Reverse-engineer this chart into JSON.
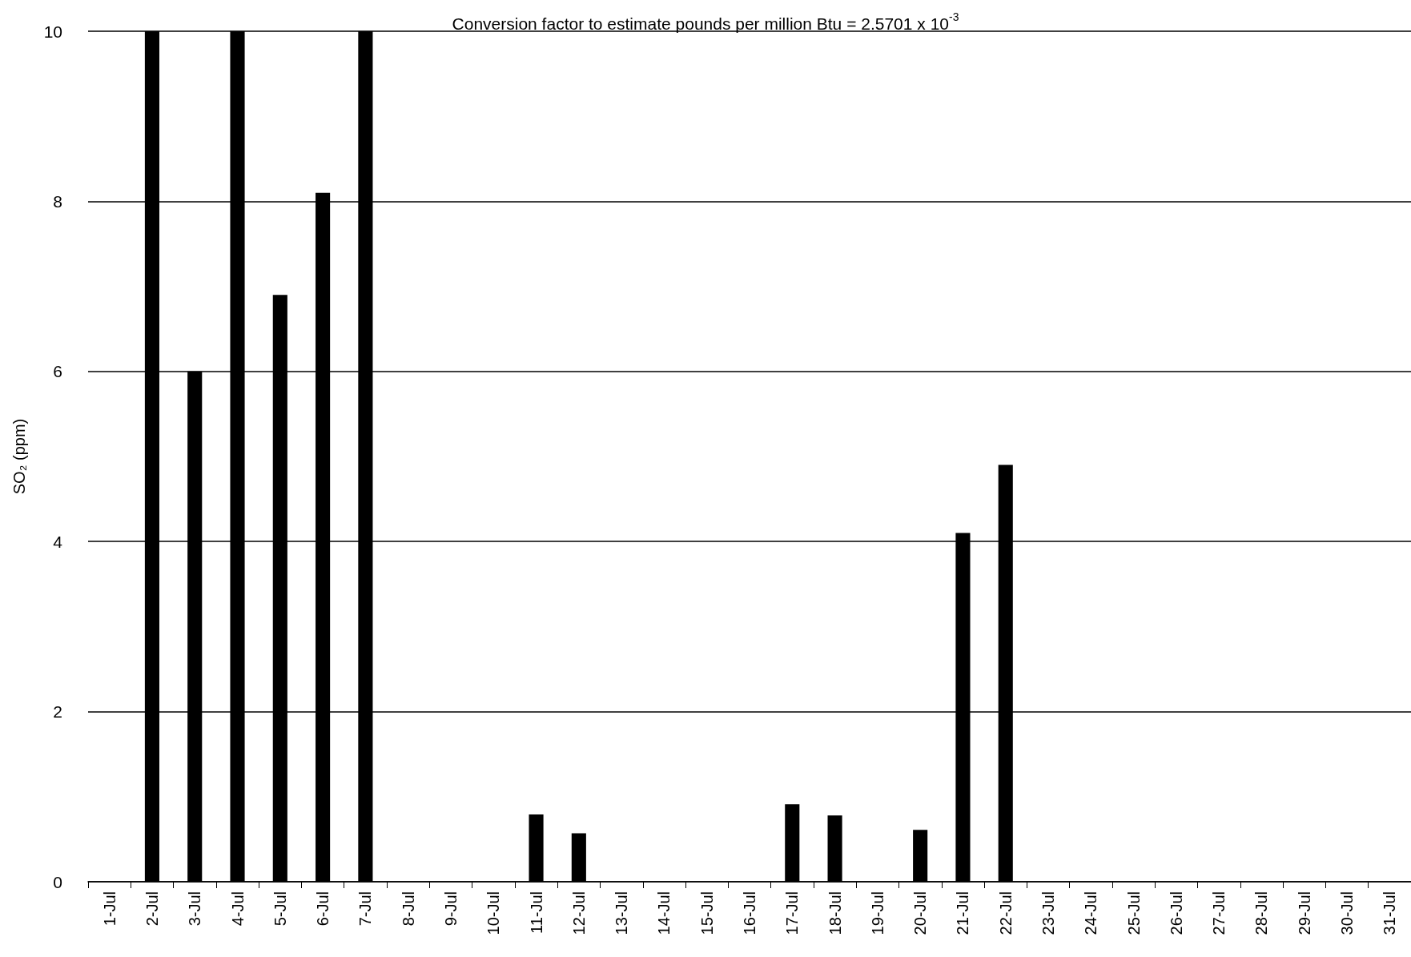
{
  "chart_data": {
    "type": "bar",
    "ylabel": "SO₂ (ppm)",
    "annotations": [
      "Conversion factor to estimate pounds per million Btu = 2.5701 x 10$^{-3}$"
    ],
    "categories": [
      "1-Jul",
      "2-Jul",
      "3-Jul",
      "4-Jul",
      "5-Jul",
      "6-Jul",
      "7-Jul",
      "8-Jul",
      "9-Jul",
      "10-Jul",
      "11-Jul",
      "12-Jul",
      "13-Jul",
      "14-Jul",
      "15-Jul",
      "16-Jul",
      "17-Jul",
      "18-Jul",
      "19-Jul",
      "20-Jul",
      "21-Jul",
      "22-Jul",
      "23-Jul",
      "24-Jul",
      "25-Jul",
      "26-Jul",
      "27-Jul",
      "28-Jul",
      "29-Jul",
      "30-Jul",
      "31-Jul"
    ],
    "values": [
      0,
      10,
      6.0,
      10,
      6.9,
      8.1,
      10,
      0,
      0,
      0,
      0.79,
      0.57,
      0,
      0,
      0,
      0,
      0.91,
      0.78,
      0,
      0.61,
      4.1,
      4.9,
      0,
      0,
      0,
      0,
      0,
      0,
      0,
      0,
      0
    ],
    "color": "#000000",
    "ylim": [
      0,
      10
    ],
    "yticks": [
      0,
      2,
      4,
      6,
      8,
      10
    ],
    "grid": "y"
  }
}
